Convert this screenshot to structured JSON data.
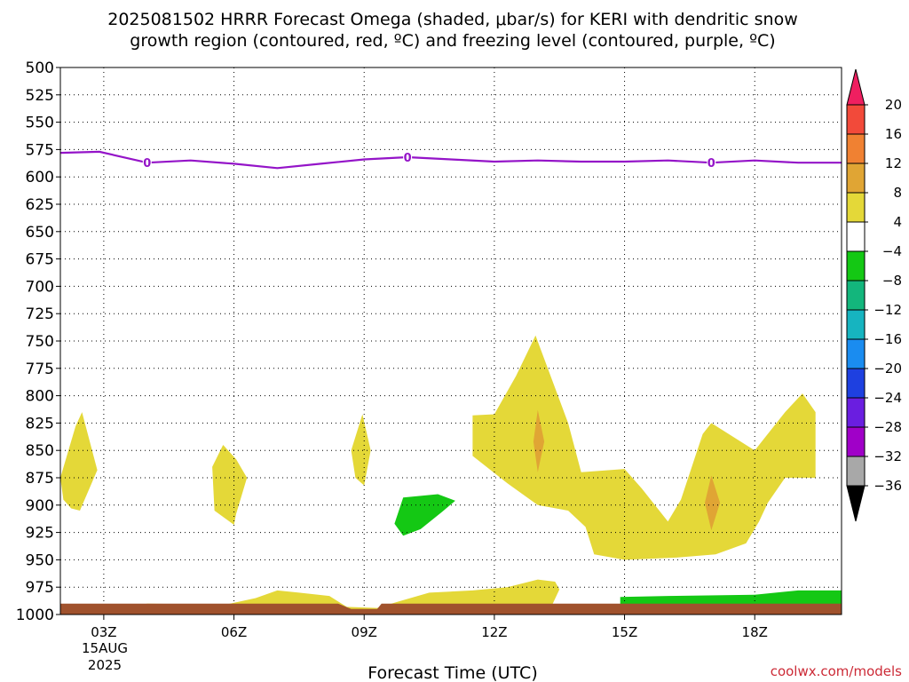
{
  "title_lines": [
    "2025081502 HRRR Forecast Omega (shaded, μbar/s) for KERI with dendritic snow",
    "growth region (contoured, red, ºC) and freezing level (contoured, purple, ºC)"
  ],
  "credit": "coolwx.com/models",
  "chart_data": {
    "type": "area",
    "xlabel": "Forecast Time (UTC)",
    "x_ticks": [
      "03Z",
      "06Z",
      "09Z",
      "12Z",
      "15Z",
      "18Z"
    ],
    "x_date_label": [
      "15AUG",
      "2025"
    ],
    "x_range_hours": [
      2,
      20
    ],
    "y_ticks": [
      "500",
      "525",
      "550",
      "575",
      "600",
      "625",
      "650",
      "675",
      "700",
      "725",
      "750",
      "775",
      "800",
      "825",
      "850",
      "875",
      "900",
      "925",
      "950",
      "975",
      "1000"
    ],
    "y_range_mb": [
      500,
      1000
    ],
    "grid": "dotted",
    "colorbar": {
      "position": "right",
      "labels": [
        "20",
        "16",
        "12",
        "8",
        "4",
        "-4",
        "-8",
        "-12",
        "-16",
        "-20",
        "-24",
        "-28",
        "-32",
        "-36"
      ],
      "colors": [
        "#ef1f60",
        "#f24a3a",
        "#f08132",
        "#e0a534",
        "#e4d838",
        "#ffffff",
        "#14c814",
        "#13b67c",
        "#16b4c0",
        "#1a8cf0",
        "#1e40e0",
        "#6a1ee0",
        "#a000c8",
        "#a8a8a8",
        "#000000"
      ]
    },
    "freezing_level": {
      "name": "0",
      "color": "#9414c8",
      "points": [
        [
          2,
          578
        ],
        [
          2.9,
          577
        ],
        [
          4,
          587
        ],
        [
          5,
          585
        ],
        [
          6,
          588
        ],
        [
          7,
          592
        ],
        [
          8,
          588
        ],
        [
          9,
          584
        ],
        [
          10,
          582
        ],
        [
          11,
          584
        ],
        [
          12,
          586
        ],
        [
          13,
          585
        ],
        [
          14,
          586
        ],
        [
          15,
          586
        ],
        [
          16,
          585
        ],
        [
          17,
          587
        ],
        [
          18,
          585
        ],
        [
          19,
          587
        ],
        [
          20,
          587
        ]
      ],
      "label_hours": [
        4,
        10,
        17
      ]
    },
    "omega_regions": [
      {
        "category": "4 to 8",
        "color": "#e4d838",
        "points": [
          [
            2,
            875
          ],
          [
            2.35,
            828
          ],
          [
            2.5,
            815
          ],
          [
            2.85,
            868
          ],
          [
            2.45,
            905
          ],
          [
            2.25,
            903
          ],
          [
            2.07,
            895
          ]
        ]
      },
      {
        "category": "4 to 8",
        "color": "#e4d838",
        "points": [
          [
            5.5,
            865
          ],
          [
            5.75,
            845
          ],
          [
            6.05,
            858
          ],
          [
            6.3,
            875
          ],
          [
            6.05,
            908
          ],
          [
            6.0,
            918
          ],
          [
            5.55,
            905
          ]
        ]
      },
      {
        "category": "4 to 8",
        "color": "#e4d838",
        "points": [
          [
            8.7,
            850
          ],
          [
            8.96,
            817
          ],
          [
            9.15,
            850
          ],
          [
            9.0,
            882
          ],
          [
            8.8,
            875
          ]
        ]
      },
      {
        "category": "4 to 8",
        "color": "#e4d838",
        "points": [
          [
            11.5,
            818
          ],
          [
            12.0,
            817
          ],
          [
            12.5,
            782
          ],
          [
            12.95,
            745
          ],
          [
            13.7,
            825
          ],
          [
            14.0,
            870
          ],
          [
            15.0,
            867
          ],
          [
            15.4,
            885
          ],
          [
            16.0,
            915
          ],
          [
            16.3,
            895
          ],
          [
            16.8,
            835
          ],
          [
            17.0,
            825
          ],
          [
            18.0,
            850
          ],
          [
            18.7,
            815
          ],
          [
            19.1,
            798
          ],
          [
            19.4,
            815
          ],
          [
            19.4,
            875
          ],
          [
            18.7,
            875
          ],
          [
            18.3,
            898
          ],
          [
            18.1,
            915
          ],
          [
            17.8,
            935
          ],
          [
            17.1,
            945
          ],
          [
            16.2,
            948
          ],
          [
            15.0,
            950
          ],
          [
            14.3,
            945
          ],
          [
            14.1,
            920
          ],
          [
            13.7,
            905
          ],
          [
            13.0,
            900
          ],
          [
            12.3,
            880
          ],
          [
            11.5,
            855
          ]
        ]
      },
      {
        "category": "8 to 12",
        "color": "#e0a534",
        "points": [
          [
            12.9,
            842
          ],
          [
            13.0,
            813
          ],
          [
            13.15,
            842
          ],
          [
            13.0,
            870
          ]
        ]
      },
      {
        "category": "8 to 12",
        "color": "#e0a534",
        "points": [
          [
            16.85,
            898
          ],
          [
            17.0,
            873
          ],
          [
            17.2,
            898
          ],
          [
            17.0,
            923
          ]
        ]
      },
      {
        "category": "-8 to -4",
        "color": "#14c814",
        "points": [
          [
            9.7,
            917
          ],
          [
            9.9,
            893
          ],
          [
            10.7,
            890
          ],
          [
            11.1,
            896
          ],
          [
            10.8,
            906
          ],
          [
            10.3,
            922
          ],
          [
            9.9,
            928
          ]
        ]
      },
      {
        "category": "4 to 8",
        "color": "#e4d838",
        "points": [
          [
            2,
            994
          ],
          [
            3.6,
            994
          ],
          [
            4.0,
            990
          ],
          [
            5.8,
            991
          ],
          [
            6.5,
            985
          ],
          [
            7.0,
            978
          ],
          [
            7.5,
            980
          ],
          [
            8.2,
            983
          ],
          [
            8.6,
            993
          ],
          [
            9.3,
            994
          ],
          [
            9.8,
            988
          ],
          [
            10.5,
            980
          ],
          [
            11.5,
            978
          ],
          [
            12.3,
            975
          ],
          [
            13.0,
            968
          ],
          [
            13.4,
            970
          ],
          [
            13.5,
            977
          ],
          [
            13.3,
            994
          ],
          [
            9.3,
            997
          ],
          [
            2,
            997
          ]
        ]
      },
      {
        "category": "-8 to -4",
        "color": "#14c814",
        "points": [
          [
            14.9,
            996
          ],
          [
            14.9,
            984
          ],
          [
            16.0,
            983
          ],
          [
            18.0,
            982
          ],
          [
            19.0,
            978
          ],
          [
            20,
            978
          ],
          [
            20,
            996
          ]
        ]
      }
    ],
    "surface_pressure": [
      [
        2,
        990
      ],
      [
        8.4,
        990
      ],
      [
        8.7,
        995
      ],
      [
        9.3,
        995
      ],
      [
        9.4,
        990
      ],
      [
        20,
        990
      ]
    ]
  }
}
